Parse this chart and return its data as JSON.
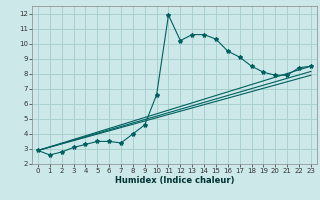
{
  "xlabel": "Humidex (Indice chaleur)",
  "bg_color": "#cce8e8",
  "grid_color": "#aad0d0",
  "line_color": "#006060",
  "xlim": [
    -0.5,
    23.5
  ],
  "ylim": [
    2,
    12.5
  ],
  "xticks": [
    0,
    1,
    2,
    3,
    4,
    5,
    6,
    7,
    8,
    9,
    10,
    11,
    12,
    13,
    14,
    15,
    16,
    17,
    18,
    19,
    20,
    21,
    22,
    23
  ],
  "yticks": [
    2,
    3,
    4,
    5,
    6,
    7,
    8,
    9,
    10,
    11,
    12
  ],
  "series1_x": [
    0,
    1,
    2,
    3,
    4,
    5,
    6,
    7,
    8,
    9,
    10,
    11,
    12,
    13,
    14,
    15,
    16,
    17,
    18,
    19,
    20,
    21,
    22,
    23
  ],
  "series1_y": [
    2.9,
    2.6,
    2.8,
    3.1,
    3.3,
    3.5,
    3.5,
    3.4,
    4.0,
    4.6,
    6.6,
    11.9,
    10.2,
    10.6,
    10.6,
    10.3,
    9.5,
    9.1,
    8.5,
    8.1,
    7.9,
    7.9,
    8.4,
    8.5
  ],
  "trend_lines": [
    {
      "x": [
        0,
        23
      ],
      "y": [
        2.9,
        8.5
      ]
    },
    {
      "x": [
        0,
        23
      ],
      "y": [
        2.9,
        7.9
      ]
    },
    {
      "x": [
        0,
        23
      ],
      "y": [
        2.9,
        8.15
      ]
    }
  ]
}
